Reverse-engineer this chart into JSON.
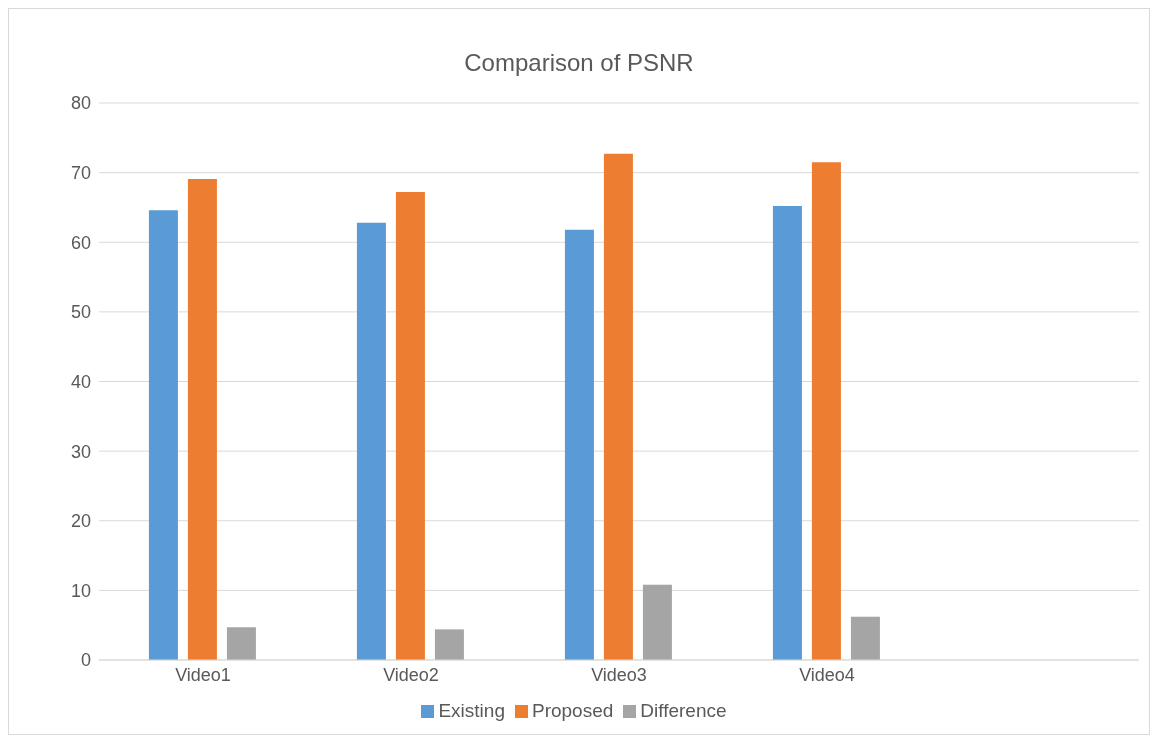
{
  "chart_data": {
    "type": "bar",
    "title": "Comparison of PSNR",
    "categories": [
      "Video1",
      "Video2",
      "Video3",
      "Video4",
      null
    ],
    "series": [
      {
        "name": "Existing",
        "color": "#5b9bd5",
        "values": [
          64.6,
          62.8,
          61.8,
          65.2,
          null
        ]
      },
      {
        "name": "Proposed",
        "color": "#ed7d31",
        "values": [
          69.1,
          67.2,
          72.7,
          71.5,
          null
        ]
      },
      {
        "name": "Difference",
        "color": "#a5a5a5",
        "values": [
          4.7,
          4.4,
          10.8,
          6.2,
          null
        ]
      }
    ],
    "ylim": [
      0,
      80
    ],
    "yticks": [
      0,
      10,
      20,
      30,
      40,
      50,
      60,
      70,
      80
    ],
    "grid": "y",
    "legend": "bottom"
  }
}
